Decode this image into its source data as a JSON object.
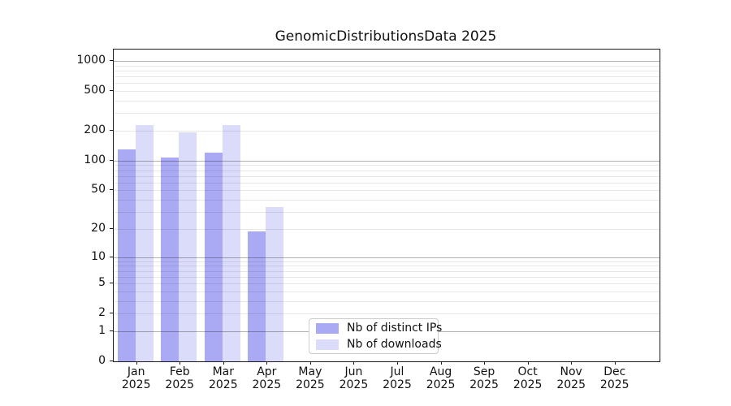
{
  "title": "GenomicDistributionsData 2025",
  "chart_data": {
    "type": "bar",
    "title": "GenomicDistributionsData 2025",
    "y_scale": "log10(1+v)",
    "categories": [
      "Jan",
      "Feb",
      "Mar",
      "Apr",
      "May",
      "Jun",
      "Jul",
      "Aug",
      "Sep",
      "Oct",
      "Nov",
      "Dec"
    ],
    "year_label": "2025",
    "series": [
      {
        "name": "Nb of distinct IPs",
        "color": "#a9a9f4",
        "values": [
          130,
          108,
          120,
          19,
          0,
          0,
          0,
          0,
          0,
          0,
          0,
          0
        ]
      },
      {
        "name": "Nb of downloads",
        "color": "#dbdbfa",
        "values": [
          230,
          192,
          228,
          34,
          0,
          0,
          0,
          0,
          0,
          0,
          0,
          0
        ]
      }
    ],
    "yticks": [
      0,
      1,
      2,
      5,
      10,
      20,
      50,
      100,
      200,
      500,
      1000
    ],
    "ylim": [
      0,
      1300
    ],
    "xlabel": "",
    "ylabel": "",
    "grid": true,
    "grid_major_at": [
      1,
      10,
      100,
      1000
    ],
    "legend_position": "lower center"
  }
}
